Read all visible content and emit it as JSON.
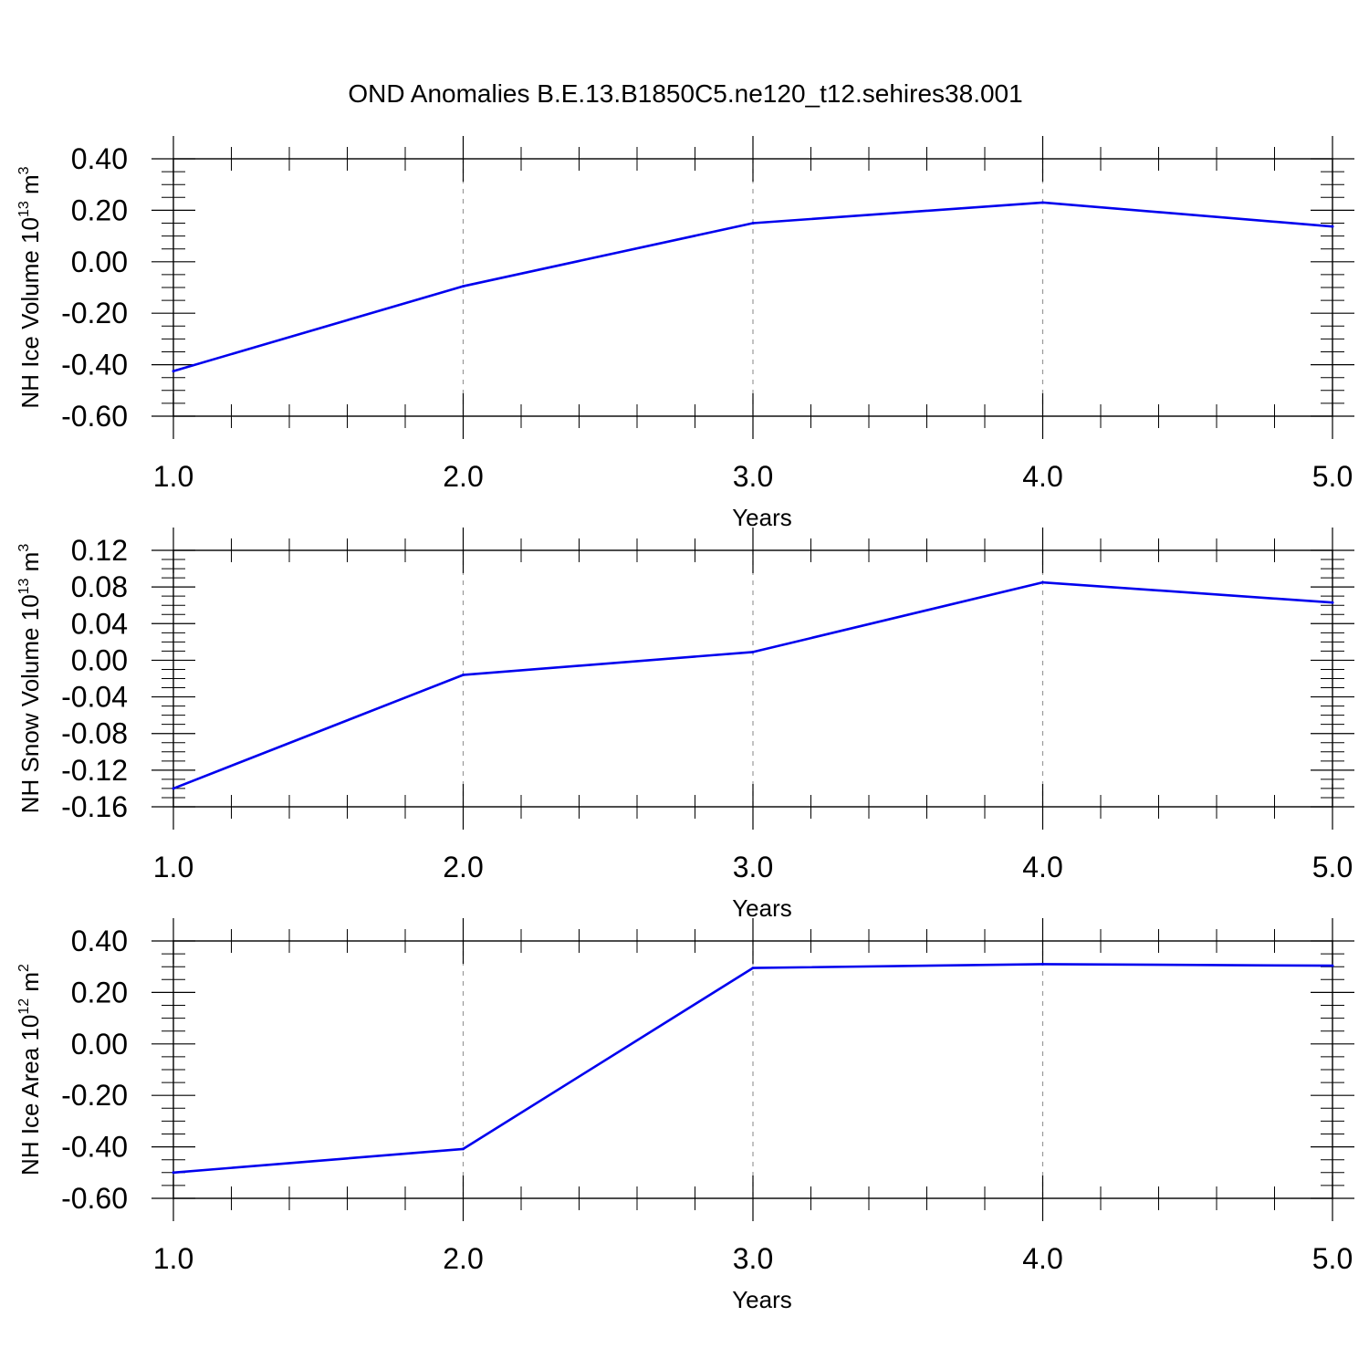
{
  "figure": {
    "title": "OND Anomalies B.E.13.B1850C5.ne120_t12.sehires38.001",
    "line_color": "#0000ee",
    "grid_color": "#999999"
  },
  "chart_data": [
    {
      "type": "line",
      "xlabel": "Years",
      "ylabel": {
        "prefix": "NH Ice Volume 10",
        "exp": "13",
        "mid": " m",
        "unit_exp": "3"
      },
      "xlim": [
        1.0,
        5.0
      ],
      "ylim": [
        -0.6,
        0.4
      ],
      "xticks": [
        1.0,
        2.0,
        3.0,
        4.0,
        5.0
      ],
      "xtick_labels": [
        "1.0",
        "2.0",
        "3.0",
        "4.0",
        "5.0"
      ],
      "yticks": [
        -0.6,
        -0.4,
        -0.2,
        0.0,
        0.2,
        0.4
      ],
      "ytick_labels": [
        "-0.60",
        "-0.40",
        "-0.20",
        "0.00",
        "0.20",
        "0.40"
      ],
      "y_minor_step": 0.05,
      "x": [
        1.0,
        2.0,
        3.0,
        4.0,
        5.0
      ],
      "values": [
        -0.425,
        -0.095,
        0.15,
        0.23,
        0.137
      ],
      "grid": "vertical dashed at major x ticks"
    },
    {
      "type": "line",
      "xlabel": "Years",
      "ylabel": {
        "prefix": "NH Snow Volume 10",
        "exp": "13",
        "mid": " m",
        "unit_exp": "3"
      },
      "xlim": [
        1.0,
        5.0
      ],
      "ylim": [
        -0.16,
        0.12
      ],
      "xticks": [
        1.0,
        2.0,
        3.0,
        4.0,
        5.0
      ],
      "xtick_labels": [
        "1.0",
        "2.0",
        "3.0",
        "4.0",
        "5.0"
      ],
      "yticks": [
        -0.16,
        -0.12,
        -0.08,
        -0.04,
        0.0,
        0.04,
        0.08,
        0.12
      ],
      "ytick_labels": [
        "-0.16",
        "-0.12",
        "-0.08",
        "-0.04",
        "0.00",
        "0.04",
        "0.08",
        "0.12"
      ],
      "y_minor_step": 0.01,
      "x": [
        1.0,
        2.0,
        3.0,
        4.0,
        5.0
      ],
      "values": [
        -0.14,
        -0.016,
        0.009,
        0.085,
        0.063
      ],
      "grid": "vertical dashed at major x ticks"
    },
    {
      "type": "line",
      "xlabel": "Years",
      "ylabel": {
        "prefix": "NH Ice Area 10",
        "exp": "12",
        "mid": " m",
        "unit_exp": "2"
      },
      "xlim": [
        1.0,
        5.0
      ],
      "ylim": [
        -0.6,
        0.4
      ],
      "xticks": [
        1.0,
        2.0,
        3.0,
        4.0,
        5.0
      ],
      "xtick_labels": [
        "1.0",
        "2.0",
        "3.0",
        "4.0",
        "5.0"
      ],
      "yticks": [
        -0.6,
        -0.4,
        -0.2,
        0.0,
        0.2,
        0.4
      ],
      "ytick_labels": [
        "-0.60",
        "-0.40",
        "-0.20",
        "0.00",
        "0.20",
        "0.40"
      ],
      "y_minor_step": 0.05,
      "x": [
        1.0,
        2.0,
        3.0,
        4.0,
        5.0
      ],
      "values": [
        -0.5,
        -0.408,
        0.295,
        0.31,
        0.304
      ],
      "grid": "vertical dashed at major x ticks"
    }
  ]
}
